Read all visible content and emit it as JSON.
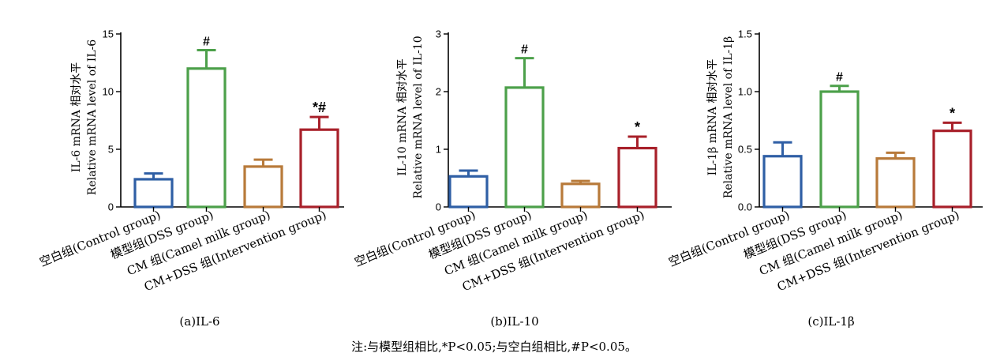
{
  "chart_data": [
    {
      "type": "bar",
      "caption": "(a)IL-6",
      "ylabel_cn": "IL-6 mRNA 相对水平",
      "ylabel_en": "Relative mRNA level of IL-6",
      "ylim": [
        0,
        15
      ],
      "yticks": [
        "0",
        "5",
        "10",
        "15"
      ],
      "ytick_values": [
        0,
        5,
        10,
        15
      ],
      "categories": [
        "空白组(Control group)",
        "模型组(DSS group)",
        "CM 组(Camel milk group)",
        "CM+DSS 组(Intervention group)"
      ],
      "values": [
        2.4,
        12.0,
        3.5,
        6.7
      ],
      "errors": [
        0.5,
        1.6,
        0.6,
        1.1
      ],
      "sig": [
        "",
        "#",
        "",
        "*#"
      ]
    },
    {
      "type": "bar",
      "caption": "(b)IL-10",
      "ylabel_cn": "IL-10 mRNA 相对水平",
      "ylabel_en": "Relative mRNA level of IL-10",
      "ylim": [
        0,
        3
      ],
      "yticks": [
        "0",
        "1",
        "2",
        "3"
      ],
      "ytick_values": [
        0,
        1,
        2,
        3
      ],
      "categories": [
        "空白组(Control group)",
        "模型组(DSS group)",
        "CM 组(Camel milk group)",
        "CM+DSS 组(Intervention group)"
      ],
      "values": [
        0.53,
        2.07,
        0.4,
        1.02
      ],
      "errors": [
        0.1,
        0.51,
        0.05,
        0.2
      ],
      "sig": [
        "",
        "#",
        "",
        "*"
      ]
    },
    {
      "type": "bar",
      "caption": "(c)IL-1β",
      "ylabel_cn": "IL-1β mRNA 相对水平",
      "ylabel_en": "Relative mRNA level of IL-1β",
      "ylim": [
        0,
        1.5
      ],
      "yticks": [
        "0.0",
        "0.5",
        "1.0",
        "1.5"
      ],
      "ytick_values": [
        0,
        0.5,
        1.0,
        1.5
      ],
      "categories": [
        "空白组(Control group)",
        "模型组(DSS group)",
        "CM 组(Camel milk group)",
        "CM+DSS 组(Intervention group)"
      ],
      "values": [
        0.44,
        1.0,
        0.42,
        0.66
      ],
      "errors": [
        0.12,
        0.05,
        0.05,
        0.07
      ],
      "sig": [
        "",
        "#",
        "",
        "*"
      ]
    }
  ],
  "colors": [
    "#2f5fa5",
    "#4ca04a",
    "#b87a3a",
    "#a8202a"
  ],
  "note": "注:与模型组相比,*P<0.05;与空白组相比,#P<0.05。"
}
